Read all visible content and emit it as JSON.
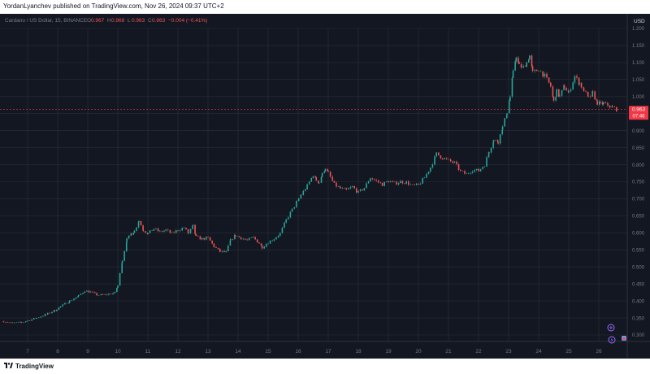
{
  "header": {
    "published_text": "YordanLyanchev published on TradingView.com, Nov 26, 2024 09:37 UTC+2"
  },
  "footer": {
    "brand": "TradingView"
  },
  "symbol_info": {
    "name": "Cardano / US Dollar, 15, BINANCE",
    "open_label": "O",
    "open": "0.967",
    "high_label": "H",
    "high": "0.968",
    "low_label": "L",
    "low": "0.963",
    "close_label": "C",
    "close": "0.963",
    "change": "−0.004 (−0.41%)"
  },
  "price_badge": {
    "price": "0.963",
    "countdown": "07:46"
  },
  "colors": {
    "background": "#131722",
    "grid": "#2a2e39",
    "up": "#26a69a",
    "down": "#ef5350",
    "text": "#787b86",
    "badge": "#f23645"
  },
  "chart_data": {
    "type": "line",
    "title": "",
    "currency": "USD",
    "ylim": [
      0.28,
      1.2
    ],
    "y_ticks": [
      1.2,
      1.15,
      1.1,
      1.05,
      1.0,
      0.95,
      0.9,
      0.85,
      0.8,
      0.75,
      0.7,
      0.65,
      0.6,
      0.55,
      0.5,
      0.45,
      0.4,
      0.35,
      0.3
    ],
    "y_tick_labels": [
      "1.200",
      "1.150",
      "1.100",
      "1.050",
      "1.000",
      "0.950",
      "0.900",
      "0.850",
      "0.800",
      "0.750",
      "0.700",
      "0.650",
      "0.600",
      "0.550",
      "0.500",
      "0.450",
      "0.400",
      "0.350",
      "0.300"
    ],
    "x_ticks": [
      "7",
      "8",
      "9",
      "10",
      "11",
      "12",
      "13",
      "14",
      "15",
      "16",
      "17",
      "18",
      "19",
      "20",
      "21",
      "22",
      "23",
      "24",
      "25",
      "26"
    ],
    "x_range_days": [
      6.2,
      26.9
    ],
    "series": [
      {
        "values": [
          [
            6.2,
            0.34
          ],
          [
            6.5,
            0.335
          ],
          [
            6.8,
            0.337
          ],
          [
            7.0,
            0.342
          ],
          [
            7.3,
            0.35
          ],
          [
            7.6,
            0.36
          ],
          [
            7.9,
            0.372
          ],
          [
            8.1,
            0.384
          ],
          [
            8.4,
            0.4
          ],
          [
            8.7,
            0.415
          ],
          [
            8.9,
            0.43
          ],
          [
            9.1,
            0.426
          ],
          [
            9.3,
            0.418
          ],
          [
            9.5,
            0.417
          ],
          [
            9.7,
            0.42
          ],
          [
            9.9,
            0.424
          ],
          [
            10.0,
            0.445
          ],
          [
            10.15,
            0.52
          ],
          [
            10.3,
            0.58
          ],
          [
            10.45,
            0.598
          ],
          [
            10.55,
            0.605
          ],
          [
            10.7,
            0.635
          ],
          [
            10.85,
            0.608
          ],
          [
            11.0,
            0.598
          ],
          [
            11.2,
            0.612
          ],
          [
            11.4,
            0.603
          ],
          [
            11.6,
            0.608
          ],
          [
            11.8,
            0.598
          ],
          [
            12.0,
            0.608
          ],
          [
            12.2,
            0.615
          ],
          [
            12.35,
            0.598
          ],
          [
            12.5,
            0.62
          ],
          [
            12.6,
            0.588
          ],
          [
            12.8,
            0.582
          ],
          [
            13.0,
            0.585
          ],
          [
            13.2,
            0.56
          ],
          [
            13.4,
            0.545
          ],
          [
            13.6,
            0.543
          ],
          [
            13.75,
            0.578
          ],
          [
            13.9,
            0.592
          ],
          [
            14.1,
            0.585
          ],
          [
            14.3,
            0.578
          ],
          [
            14.5,
            0.586
          ],
          [
            14.7,
            0.57
          ],
          [
            14.8,
            0.558
          ],
          [
            15.0,
            0.572
          ],
          [
            15.2,
            0.583
          ],
          [
            15.4,
            0.598
          ],
          [
            15.6,
            0.638
          ],
          [
            15.8,
            0.668
          ],
          [
            15.95,
            0.69
          ],
          [
            16.1,
            0.712
          ],
          [
            16.3,
            0.738
          ],
          [
            16.5,
            0.77
          ],
          [
            16.6,
            0.755
          ],
          [
            16.7,
            0.748
          ],
          [
            16.8,
            0.772
          ],
          [
            16.9,
            0.79
          ],
          [
            17.0,
            0.775
          ],
          [
            17.2,
            0.742
          ],
          [
            17.4,
            0.73
          ],
          [
            17.6,
            0.725
          ],
          [
            17.8,
            0.735
          ],
          [
            18.0,
            0.718
          ],
          [
            18.2,
            0.732
          ],
          [
            18.4,
            0.762
          ],
          [
            18.6,
            0.752
          ],
          [
            18.8,
            0.742
          ],
          [
            19.0,
            0.752
          ],
          [
            19.2,
            0.745
          ],
          [
            19.4,
            0.75
          ],
          [
            19.6,
            0.748
          ],
          [
            19.8,
            0.738
          ],
          [
            20.0,
            0.74
          ],
          [
            20.2,
            0.762
          ],
          [
            20.4,
            0.792
          ],
          [
            20.6,
            0.832
          ],
          [
            20.8,
            0.82
          ],
          [
            21.0,
            0.812
          ],
          [
            21.2,
            0.805
          ],
          [
            21.4,
            0.78
          ],
          [
            21.6,
            0.772
          ],
          [
            21.8,
            0.785
          ],
          [
            22.0,
            0.782
          ],
          [
            22.2,
            0.8
          ],
          [
            22.35,
            0.84
          ],
          [
            22.5,
            0.872
          ],
          [
            22.65,
            0.868
          ],
          [
            22.8,
            0.91
          ],
          [
            22.95,
            0.955
          ],
          [
            23.05,
            1.0
          ],
          [
            23.15,
            1.07
          ],
          [
            23.25,
            1.12
          ],
          [
            23.35,
            1.09
          ],
          [
            23.5,
            1.085
          ],
          [
            23.6,
            1.1
          ],
          [
            23.7,
            1.12
          ],
          [
            23.8,
            1.07
          ],
          [
            24.0,
            1.08
          ],
          [
            24.2,
            1.06
          ],
          [
            24.4,
            1.03
          ],
          [
            24.5,
            0.985
          ],
          [
            24.6,
            1.015
          ],
          [
            24.7,
            1.0
          ],
          [
            24.85,
            1.03
          ],
          [
            25.0,
            1.01
          ],
          [
            25.2,
            1.06
          ],
          [
            25.35,
            1.04
          ],
          [
            25.5,
            1.02
          ],
          [
            25.65,
            0.995
          ],
          [
            25.8,
            1.01
          ],
          [
            25.95,
            0.982
          ],
          [
            26.05,
            0.978
          ],
          [
            26.15,
            0.98
          ],
          [
            26.3,
            0.975
          ],
          [
            26.45,
            0.968
          ],
          [
            26.6,
            0.963
          ]
        ]
      }
    ],
    "last_price": 0.963
  }
}
